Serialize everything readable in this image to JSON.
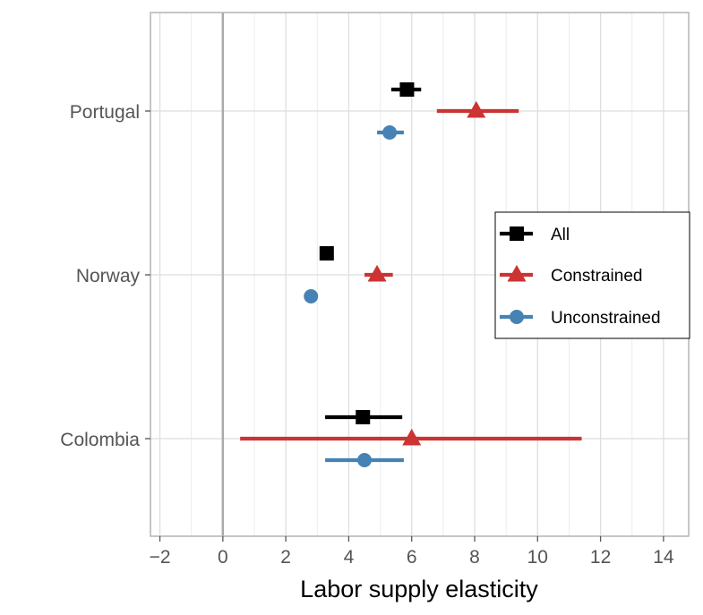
{
  "chart_data": {
    "type": "errorbar",
    "title": "",
    "xlabel": "Labor supply elasticity",
    "ylabel": "",
    "xlim": [
      -2.3,
      14.8
    ],
    "x_ticks": [
      -2,
      0,
      2,
      4,
      6,
      8,
      10,
      12,
      14
    ],
    "x_tick_labels": [
      "−2",
      "0",
      "2",
      "4",
      "6",
      "8",
      "10",
      "12",
      "14"
    ],
    "reference_line_x": 0,
    "grid": true,
    "categories": [
      "Portugal",
      "Norway",
      "Colombia"
    ],
    "legend_position": "right",
    "series": [
      {
        "name": "All",
        "color": "#000000",
        "marker": "square",
        "points": [
          {
            "country": "Portugal",
            "estimate": 5.85,
            "low": 5.35,
            "high": 6.3
          },
          {
            "country": "Norway",
            "estimate": 3.3,
            "low": 3.25,
            "high": 3.35
          },
          {
            "country": "Colombia",
            "estimate": 4.45,
            "low": 3.25,
            "high": 5.7
          }
        ]
      },
      {
        "name": "Constrained",
        "color": "#cc3333",
        "marker": "triangle",
        "points": [
          {
            "country": "Portugal",
            "estimate": 8.05,
            "low": 6.8,
            "high": 9.4
          },
          {
            "country": "Norway",
            "estimate": 4.9,
            "low": 4.5,
            "high": 5.4
          },
          {
            "country": "Colombia",
            "estimate": 6.0,
            "low": 0.55,
            "high": 11.4
          }
        ]
      },
      {
        "name": "Unconstrained",
        "color": "#4682b4",
        "marker": "circle",
        "points": [
          {
            "country": "Portugal",
            "estimate": 5.3,
            "low": 4.9,
            "high": 5.75
          },
          {
            "country": "Norway",
            "estimate": 2.8,
            "low": 2.75,
            "high": 2.85
          },
          {
            "country": "Colombia",
            "estimate": 4.5,
            "low": 3.25,
            "high": 5.75
          }
        ]
      }
    ]
  }
}
